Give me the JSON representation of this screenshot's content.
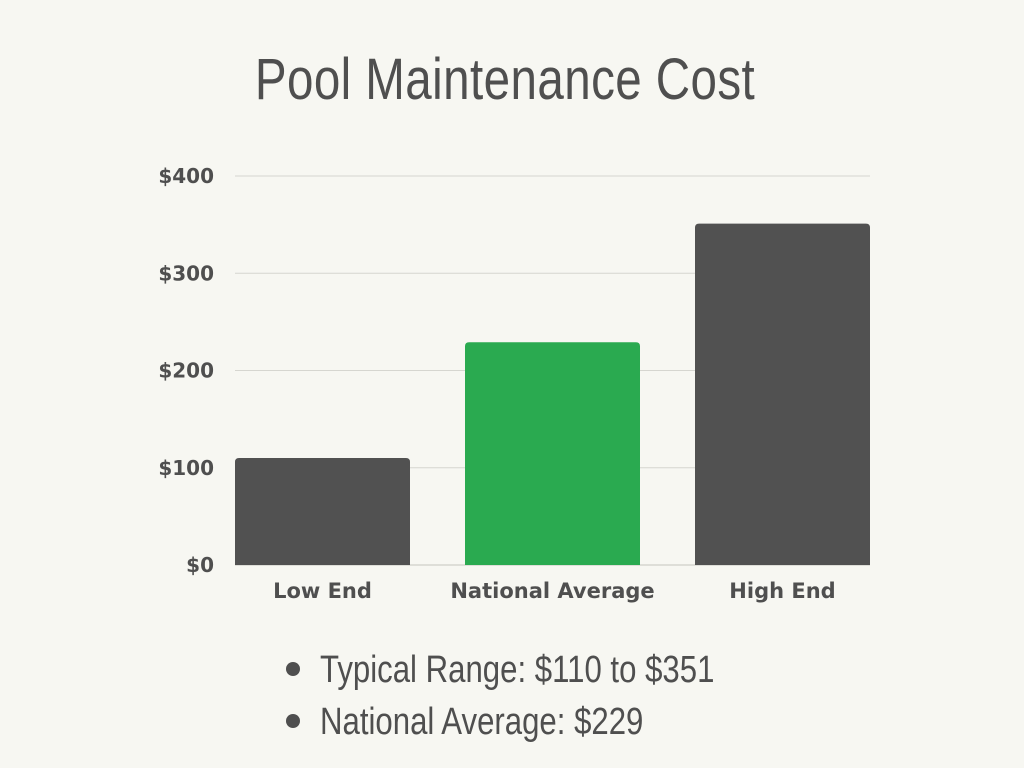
{
  "chart_data": {
    "type": "bar",
    "title": "Pool Maintenance Cost",
    "categories": [
      "Low End",
      "National Average",
      "High End"
    ],
    "values": [
      110,
      229,
      351
    ],
    "bar_colors": [
      "#515151",
      "#2aaa50",
      "#515151"
    ],
    "ylim": [
      0,
      400
    ],
    "yticks": [
      0,
      100,
      200,
      300,
      400
    ],
    "ytick_labels": [
      "$0",
      "$100",
      "$200",
      "$300",
      "$400"
    ],
    "xlabel": "",
    "ylabel": "",
    "grid": true,
    "legend": "none"
  },
  "summary": {
    "items": [
      "Typical Range: $110 to $351",
      "National Average: $229"
    ]
  },
  "colors": {
    "background": "#f7f7f2",
    "text": "#4f4f4f",
    "gridline": "#d6d6d0",
    "accent": "#2aaa50",
    "bar_default": "#515151"
  }
}
